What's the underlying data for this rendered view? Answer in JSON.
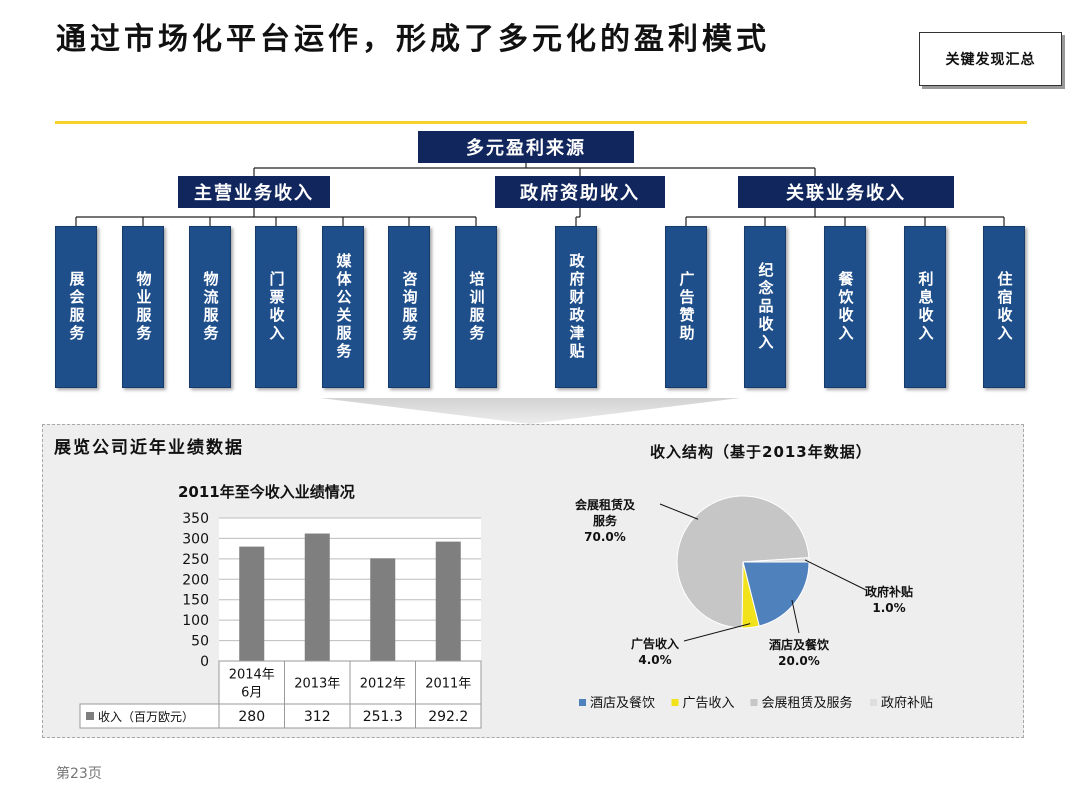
{
  "page": {
    "title": "通过市场化平台运作，形成了多元化的盈利模式",
    "summary_button": "关键发现汇总",
    "footer": "第23页"
  },
  "tree": {
    "root": "多元盈利来源",
    "categories": [
      {
        "label": "主营业务收入",
        "items": [
          "展会服务",
          "物业服务",
          "物流服务",
          "门票收入",
          "媒体公关服务",
          "咨询服务",
          "培训服务"
        ]
      },
      {
        "label": "政府资助收入",
        "items": [
          "政府财政津贴"
        ]
      },
      {
        "label": "关联业务收入",
        "items": [
          "广告赞助",
          "纪念品收入",
          "餐饮收入",
          "利息收入",
          "住宿收入"
        ]
      }
    ]
  },
  "panel": {
    "title": "展览公司近年业绩数据"
  },
  "colors": {
    "navy": "#10265c",
    "leaf_blue": "#1f4f8b",
    "gold": "#f5d328",
    "bar": "#7f7f7f",
    "pie_hotel": "#4f81bd",
    "pie_ads": "#f2e21b",
    "pie_expo": "#c6c6c6",
    "pie_gov": "#dedede"
  },
  "chart_data": [
    {
      "type": "bar",
      "title": "2011年至今收入业绩情况",
      "categories": [
        "2014年\n6月",
        "2013年",
        "2012年",
        "2011年"
      ],
      "series": [
        {
          "name": "收入（百万欧元）",
          "values": [
            280,
            312,
            251.3,
            292.2
          ],
          "value_labels": [
            "280",
            "312",
            "251.3",
            "292.2"
          ]
        }
      ],
      "ylim": [
        0,
        350
      ],
      "yticks": [
        0,
        50,
        100,
        150,
        200,
        250,
        300,
        350
      ],
      "grid": true,
      "legend": "data-table"
    },
    {
      "type": "pie",
      "title": "收入结构（基于2013年数据）",
      "slices": [
        {
          "label": "酒店及餐饮",
          "value": 20.0,
          "pct": "20.0%",
          "color": "#4f81bd"
        },
        {
          "label": "广告收入",
          "value": 4.0,
          "pct": "4.0%",
          "color": "#f2e21b"
        },
        {
          "label": "会展租赁及服务",
          "value": 70.0,
          "pct": "70.0%",
          "color": "#c6c6c6"
        },
        {
          "label": "政府补贴",
          "value": 1.0,
          "pct": "1.0%",
          "color": "#dedede"
        }
      ],
      "callouts": [
        {
          "lines": [
            "会展租赁及",
            "服务"
          ],
          "pct": "70.0%"
        },
        {
          "lines": [
            "政府补贴"
          ],
          "pct": "1.0%"
        },
        {
          "lines": [
            "广告收入"
          ],
          "pct": "4.0%"
        },
        {
          "lines": [
            "酒店及餐饮"
          ],
          "pct": "20.0%"
        }
      ],
      "legend": "bottom"
    }
  ]
}
